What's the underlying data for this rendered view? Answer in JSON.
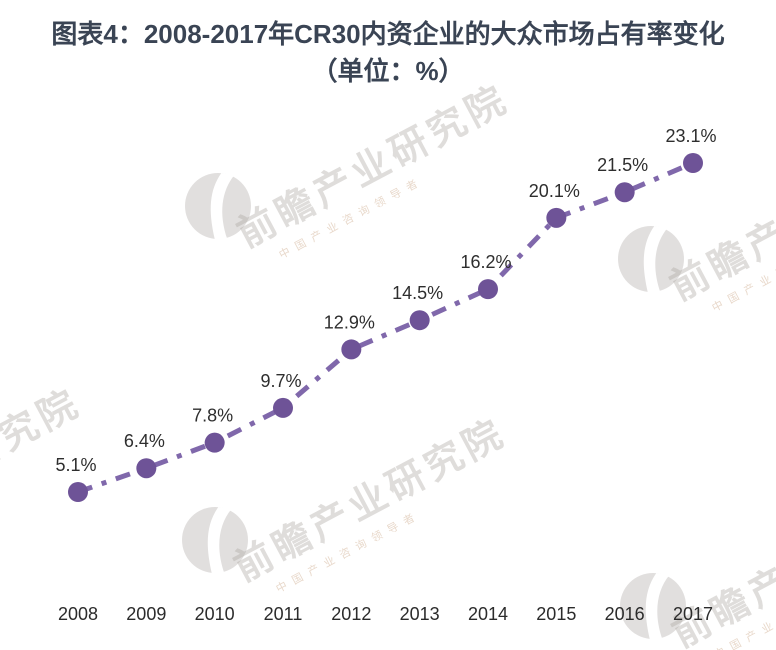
{
  "watermark": {
    "brand": "前瞻产业研究院",
    "subtext": "中国产业咨询领导者"
  },
  "chart_data": {
    "type": "line",
    "title": "图表4：2008-2017年CR30内资企业的大众市场占有率变化（单位：%）",
    "categories": [
      "2008",
      "2009",
      "2010",
      "2011",
      "2012",
      "2013",
      "2014",
      "2015",
      "2016",
      "2017"
    ],
    "values": [
      5.1,
      6.4,
      7.8,
      9.7,
      12.9,
      14.5,
      16.2,
      20.1,
      21.5,
      23.1
    ],
    "data_labels": [
      "5.1%",
      "6.4%",
      "7.8%",
      "9.7%",
      "12.9%",
      "14.5%",
      "16.2%",
      "20.1%",
      "21.5%",
      "23.1%"
    ],
    "unit": "%",
    "xlabel": "",
    "ylabel": "",
    "line_style": "dash-dot",
    "marker": "circle",
    "line_color": "#8068ab",
    "marker_color": "#6e5397",
    "label_color": "#2e2e2e",
    "axis_label_color": "#2b2b2b",
    "grid": false,
    "y_axis_visible": false,
    "legend_position": "none"
  }
}
